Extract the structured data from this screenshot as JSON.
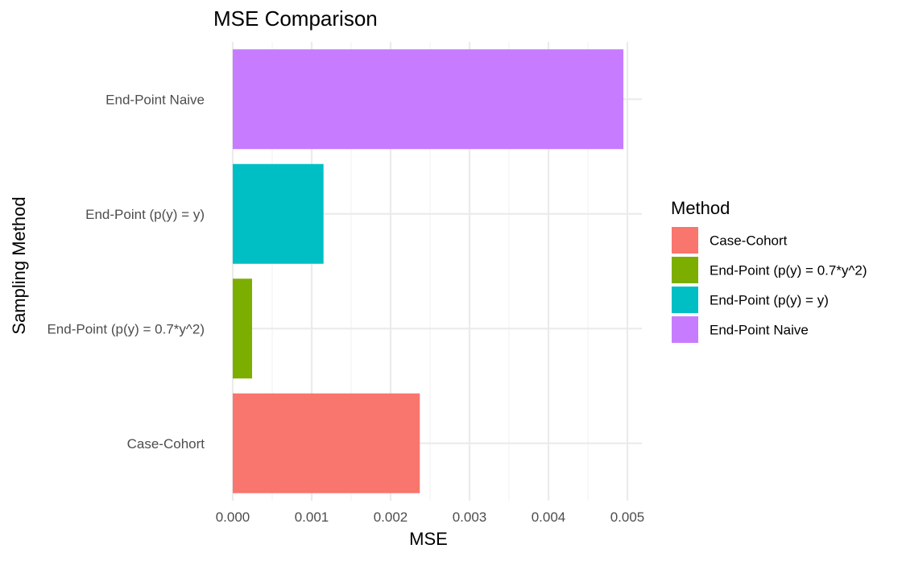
{
  "chart_data": {
    "type": "bar",
    "orientation": "horizontal",
    "title": "MSE Comparison",
    "xlabel": "MSE",
    "ylabel": "Sampling Method",
    "categories": [
      "Case-Cohort",
      "End-Point (p(y) = 0.7*y^2)",
      "End-Point (p(y) = y)",
      "End-Point Naive"
    ],
    "values": [
      0.00237,
      0.000245,
      0.00115,
      0.00495
    ],
    "colors": [
      "#F8766D",
      "#7CAE00",
      "#00BFC4",
      "#C77CFF"
    ],
    "xlim": [
      0,
      0.0052
    ],
    "xticks": [
      0,
      0.001,
      0.002,
      0.003,
      0.004,
      0.005
    ],
    "xtick_labels": [
      "0.000",
      "0.001",
      "0.002",
      "0.003",
      "0.004",
      "0.005"
    ],
    "grid": true,
    "legend": {
      "title": "Method",
      "placement": "right",
      "entries": [
        "Case-Cohort",
        "End-Point (p(y) = 0.7*y^2)",
        "End-Point (p(y) = y)",
        "End-Point Naive"
      ]
    }
  }
}
